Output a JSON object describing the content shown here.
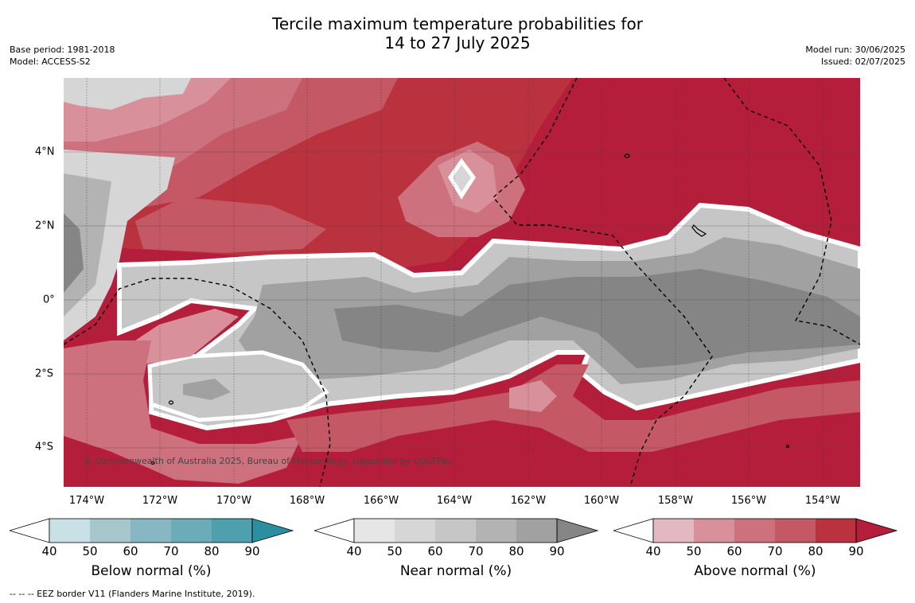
{
  "header": {
    "title_line1": "Tercile maximum temperature probabilities for",
    "title_line2": "14 to 27 July 2025",
    "base_period": "Base period: 1981-2018",
    "model": "Model: ACCESS-S2",
    "model_run": "Model run: 30/06/2025",
    "issued": "Issued: 02/07/2025"
  },
  "map": {
    "longitude_labels": [
      "174°W",
      "172°W",
      "170°W",
      "168°W",
      "166°W",
      "164°W",
      "162°W",
      "160°W",
      "158°W",
      "156°W",
      "154°W"
    ],
    "latitude_labels": [
      "4°N",
      "2°N",
      "0°",
      "2°S",
      "4°S"
    ],
    "copyright": "© Commonwealth of Australia 2025, Bureau of Meteorology, supported by COSPPac",
    "colors": {
      "above": [
        "#e2b9c0",
        "#d8909b",
        "#cc717d",
        "#c45864",
        "#b9323e",
        "#b51e3a"
      ],
      "near": [
        "#e6e6e6",
        "#d6d6d6",
        "#c6c6c6",
        "#b3b3b3",
        "#a1a1a1",
        "#858585"
      ],
      "below": [
        "#c9e1e6",
        "#a7c7cc",
        "#87b7c3",
        "#6aadb9",
        "#4fa0ae",
        "#2a90a0"
      ]
    }
  },
  "legends": [
    {
      "title": "Below normal (%)",
      "ticks": [
        "40",
        "50",
        "60",
        "70",
        "80",
        "90"
      ],
      "palette": "below"
    },
    {
      "title": "Near normal (%)",
      "ticks": [
        "40",
        "50",
        "60",
        "70",
        "80",
        "90"
      ],
      "palette": "near"
    },
    {
      "title": "Above normal (%)",
      "ticks": [
        "40",
        "50",
        "60",
        "70",
        "80",
        "90"
      ],
      "palette": "above"
    }
  ],
  "footnote": "--  --  -- EEZ border V11 (Flanders Marine Institute, 2019)."
}
